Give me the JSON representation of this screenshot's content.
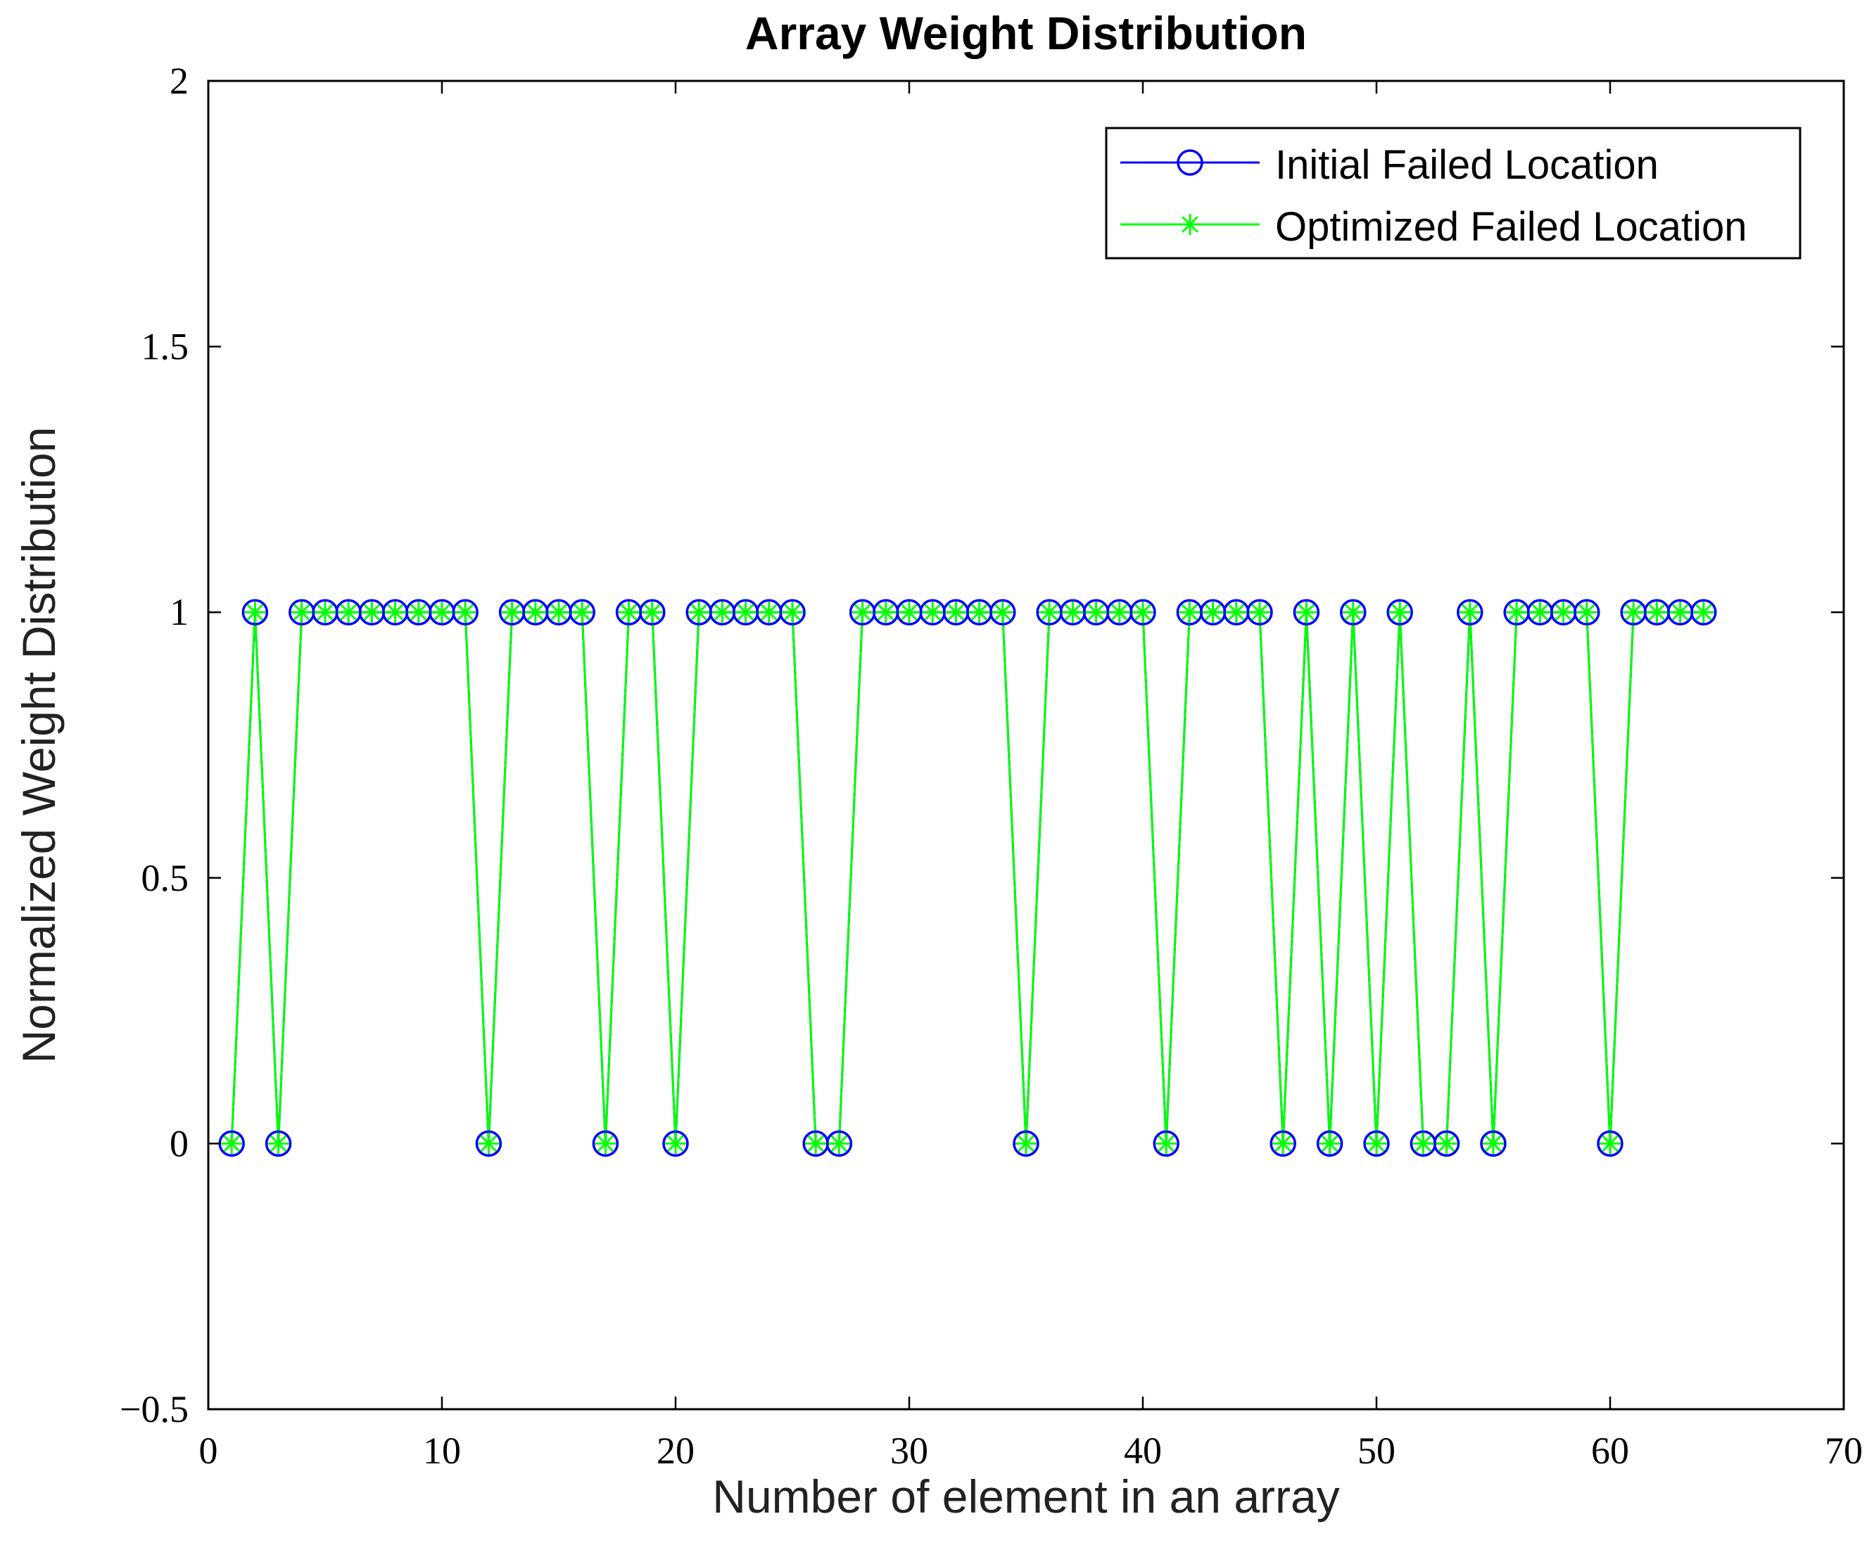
{
  "chart_data": {
    "type": "line",
    "title": "Array Weight Distribution",
    "xlabel": "Number of element in an array",
    "ylabel": "Normalized Weight Distribution",
    "xlim": [
      0,
      70
    ],
    "ylim": [
      -0.5,
      2
    ],
    "xticks": [
      0,
      10,
      20,
      30,
      40,
      50,
      60,
      70
    ],
    "xtick_labels": [
      "0",
      "10",
      "20",
      "30",
      "40",
      "50",
      "60",
      "70"
    ],
    "yticks": [
      -0.5,
      0,
      0.5,
      1,
      1.5,
      2
    ],
    "ytick_labels": [
      "−0.5",
      "0",
      "0.5",
      "1",
      "1.5",
      "2"
    ],
    "grid": false,
    "legend_position": "top-right",
    "x": [
      1,
      2,
      3,
      4,
      5,
      6,
      7,
      8,
      9,
      10,
      11,
      12,
      13,
      14,
      15,
      16,
      17,
      18,
      19,
      20,
      21,
      22,
      23,
      24,
      25,
      26,
      27,
      28,
      29,
      30,
      31,
      32,
      33,
      34,
      35,
      36,
      37,
      38,
      39,
      40,
      41,
      42,
      43,
      44,
      45,
      46,
      47,
      48,
      49,
      50,
      51,
      52,
      53,
      54,
      55,
      56,
      57,
      58,
      59,
      60,
      61,
      62,
      63,
      64
    ],
    "series": [
      {
        "name": "Initial Failed Location",
        "color": "#0000ff",
        "marker": "circle",
        "values": [
          0,
          1,
          0,
          1,
          1,
          1,
          1,
          1,
          1,
          1,
          1,
          0,
          1,
          1,
          1,
          1,
          0,
          1,
          1,
          0,
          1,
          1,
          1,
          1,
          1,
          0,
          0,
          1,
          1,
          1,
          1,
          1,
          1,
          1,
          0,
          1,
          1,
          1,
          1,
          1,
          0,
          1,
          1,
          1,
          1,
          0,
          1,
          0,
          1,
          0,
          1,
          0,
          0,
          1,
          0,
          1,
          1,
          1,
          1,
          0,
          1,
          1,
          1,
          1
        ]
      },
      {
        "name": "Optimized Failed Location",
        "color": "#00ff00",
        "marker": "asterisk",
        "values": [
          0,
          1,
          0,
          1,
          1,
          1,
          1,
          1,
          1,
          1,
          1,
          0,
          1,
          1,
          1,
          1,
          0,
          1,
          1,
          0,
          1,
          1,
          1,
          1,
          1,
          0,
          0,
          1,
          1,
          1,
          1,
          1,
          1,
          1,
          0,
          1,
          1,
          1,
          1,
          1,
          0,
          1,
          1,
          1,
          1,
          0,
          1,
          0,
          1,
          0,
          1,
          0,
          0,
          1,
          0,
          1,
          1,
          1,
          1,
          0,
          1,
          1,
          1,
          1
        ]
      }
    ]
  }
}
